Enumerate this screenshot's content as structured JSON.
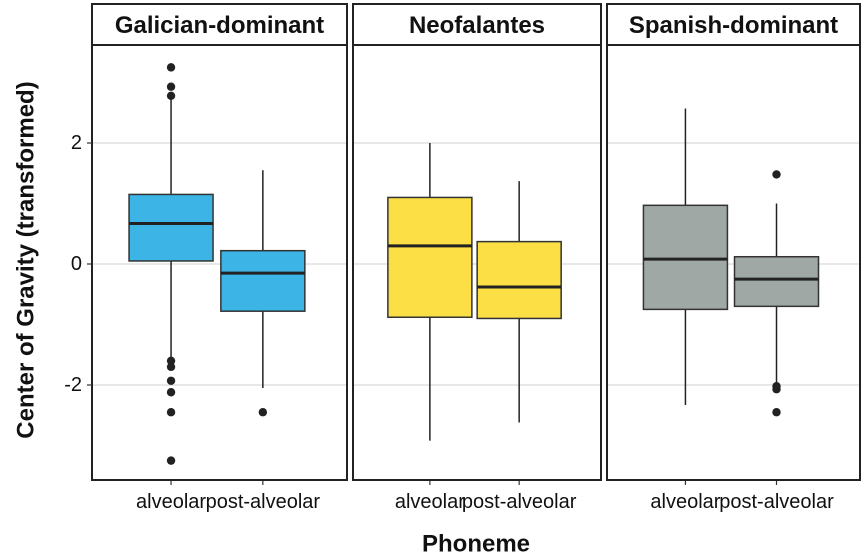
{
  "chart_data": {
    "type": "boxplot",
    "xlabel": "Phoneme",
    "ylabel": "Center of Gravity (transformed)",
    "ylim": [
      -3.45,
      3.55
    ],
    "yticks": [
      2,
      0,
      -2
    ],
    "ytick_labels": [
      "2",
      "0",
      "-2"
    ],
    "grid": "horizontal major lines",
    "categories": [
      "alveolar",
      "post-alveolar"
    ],
    "panels": [
      {
        "facet": "Galician-dominant",
        "color": "#3cb4e6",
        "boxes": [
          {
            "category": "alveolar",
            "q1": 0.05,
            "median": 0.67,
            "q3": 1.15,
            "whisker_low": -1.55,
            "whisker_high": 2.75,
            "outliers": [
              3.25,
              2.93,
              2.78,
              -1.6,
              -1.7,
              -1.93,
              -2.12,
              -2.45,
              -3.25
            ]
          },
          {
            "category": "post-alveolar",
            "q1": -0.78,
            "median": -0.15,
            "q3": 0.22,
            "whisker_low": -2.05,
            "whisker_high": 1.55,
            "outliers": [
              -2.45
            ]
          }
        ]
      },
      {
        "facet": "Neofalantes",
        "color": "#fbdf45",
        "boxes": [
          {
            "category": "alveolar",
            "q1": -0.88,
            "median": 0.3,
            "q3": 1.1,
            "whisker_low": -2.92,
            "whisker_high": 2.0,
            "outliers": []
          },
          {
            "category": "post-alveolar",
            "q1": -0.9,
            "median": -0.38,
            "q3": 0.37,
            "whisker_low": -2.62,
            "whisker_high": 1.37,
            "outliers": []
          }
        ]
      },
      {
        "facet": "Spanish-dominant",
        "color": "#9fa8a4",
        "boxes": [
          {
            "category": "alveolar",
            "q1": -0.75,
            "median": 0.08,
            "q3": 0.97,
            "whisker_low": -2.33,
            "whisker_high": 2.57,
            "outliers": []
          },
          {
            "category": "post-alveolar",
            "q1": -0.7,
            "median": -0.25,
            "q3": 0.12,
            "whisker_low": -1.98,
            "whisker_high": 1.0,
            "outliers": [
              1.48,
              -2.02,
              -2.07,
              -2.45
            ]
          }
        ]
      }
    ]
  }
}
